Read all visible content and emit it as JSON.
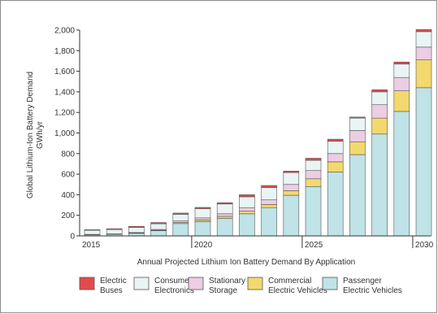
{
  "chart_data": {
    "type": "bar",
    "stacked": true,
    "title": "",
    "ylabel": "Global Lithium-Ion Battery Demand",
    "yunit": "GWh/yr",
    "xlabel": "Annual Projected Lithium Ion Battery Demand By Application",
    "ylim": [
      0,
      2000
    ],
    "yticks": [
      0,
      200,
      400,
      600,
      800,
      1000,
      1200,
      1400,
      1600,
      1800,
      2000
    ],
    "ytick_labels": [
      "0",
      "200",
      "400",
      "600",
      "800",
      "1,000",
      "1,200",
      "1,400",
      "1,600",
      "1,800",
      "2,000"
    ],
    "xtick_labels": [
      "2015",
      "2020",
      "2025",
      "2030"
    ],
    "categories": [
      2015,
      2016,
      2017,
      2018,
      2019,
      2020,
      2021,
      2022,
      2023,
      2024,
      2025,
      2026,
      2027,
      2028,
      2029,
      2030
    ],
    "legend_position": "bottom",
    "grid": false,
    "series": [
      {
        "name": "Passenger Electric Vehicles",
        "color": "#bfe3e6",
        "values": [
          10,
          15,
          25,
          50,
          120,
          140,
          170,
          215,
          275,
          395,
          480,
          620,
          790,
          990,
          1210,
          1440
        ]
      },
      {
        "name": "Commercial Electric Vehicles",
        "color": "#f3d86e",
        "values": [
          2,
          2,
          3,
          5,
          10,
          15,
          20,
          25,
          30,
          45,
          75,
          100,
          125,
          155,
          200,
          270
        ]
      },
      {
        "name": "Stationary Storage",
        "color": "#eccde3",
        "values": [
          3,
          3,
          5,
          8,
          15,
          20,
          25,
          35,
          45,
          60,
          80,
          80,
          110,
          130,
          130,
          125
        ]
      },
      {
        "name": "Consumer Electronics",
        "color": "#e8f5f4",
        "values": [
          40,
          42,
          50,
          55,
          65,
          90,
          95,
          105,
          120,
          115,
          100,
          120,
          120,
          125,
          130,
          150
        ]
      },
      {
        "name": "Electric Buses",
        "color": "#e34b4b",
        "values": [
          5,
          8,
          10,
          12,
          12,
          12,
          13,
          20,
          20,
          15,
          20,
          20,
          10,
          20,
          20,
          20
        ]
      }
    ]
  }
}
